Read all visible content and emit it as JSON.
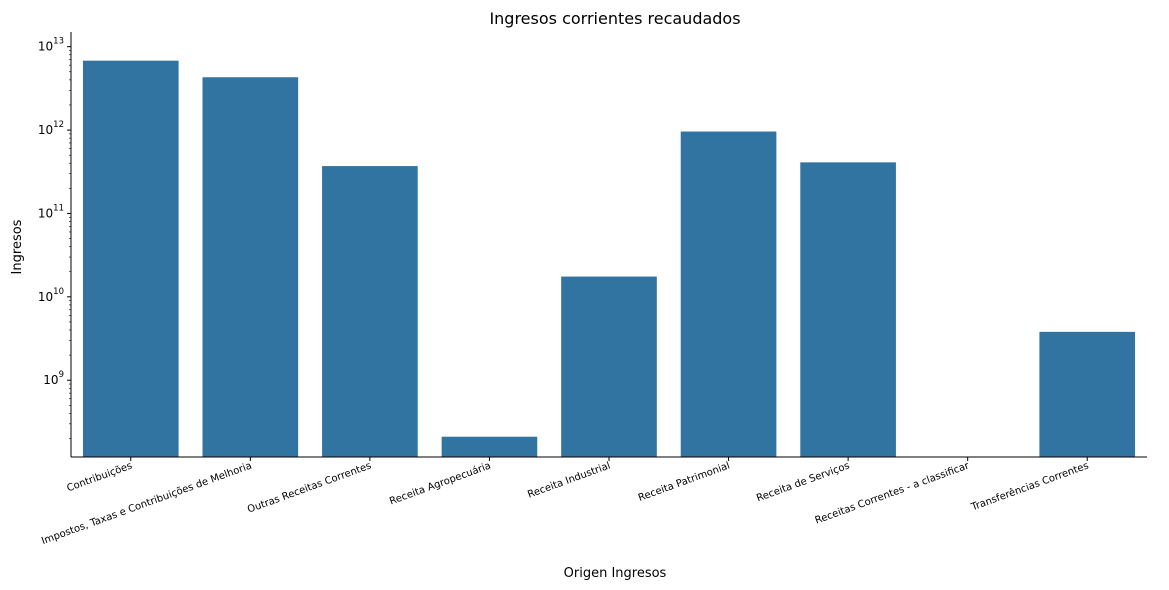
{
  "chart_data": {
    "type": "bar",
    "title": "Ingresos corrientes recaudados",
    "xlabel": "Origen Ingresos",
    "ylabel": "Ingresos",
    "yscale": "log",
    "ylim": [
      120000000,
      15000000000000
    ],
    "yticks": [
      {
        "value": 1000000000,
        "base": "10",
        "exp": "9"
      },
      {
        "value": 10000000000,
        "base": "10",
        "exp": "10"
      },
      {
        "value": 100000000000,
        "base": "10",
        "exp": "11"
      },
      {
        "value": 1000000000000,
        "base": "10",
        "exp": "12"
      },
      {
        "value": 10000000000000,
        "base": "10",
        "exp": "13"
      }
    ],
    "categories": [
      "Contribuições",
      "Impostos, Taxas e Contribuições de Melhoria",
      "Outras Receitas Correntes",
      "Receita Agropecuária",
      "Receita Industrial",
      "Receita Patrimonial",
      "Receita de Serviços",
      "Receitas Correntes - a classificar",
      "Transferências Correntes"
    ],
    "values": [
      6800000000000,
      4300000000000,
      370000000000,
      210000000,
      17500000000,
      960000000000,
      410000000000,
      null,
      3800000000
    ],
    "bar_color": "#3274a1",
    "grid": false,
    "legend": "none"
  }
}
